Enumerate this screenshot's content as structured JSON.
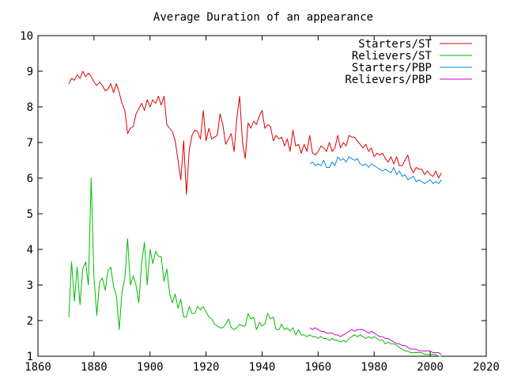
{
  "chart_data": {
    "type": "line",
    "title": "Average Duration of an appearance",
    "xlabel": "",
    "ylabel": "",
    "xlim": [
      1860,
      2020
    ],
    "ylim": [
      1,
      10
    ],
    "x_ticks": [
      1860,
      1880,
      1900,
      1920,
      1940,
      1960,
      1980,
      2000,
      2020
    ],
    "y_ticks": [
      1,
      2,
      3,
      4,
      5,
      6,
      7,
      8,
      9,
      10
    ],
    "grid": false,
    "legend_position": "top-right",
    "series": [
      {
        "name": "Starters/ST",
        "color": "#dd0000",
        "x": [
          1871,
          1872,
          1873,
          1874,
          1875,
          1876,
          1877,
          1878,
          1879,
          1880,
          1881,
          1882,
          1883,
          1884,
          1885,
          1886,
          1887,
          1888,
          1889,
          1890,
          1891,
          1892,
          1893,
          1894,
          1895,
          1896,
          1897,
          1898,
          1899,
          1900,
          1901,
          1902,
          1903,
          1904,
          1905,
          1906,
          1907,
          1908,
          1909,
          1910,
          1911,
          1912,
          1913,
          1914,
          1915,
          1916,
          1917,
          1918,
          1919,
          1920,
          1921,
          1922,
          1923,
          1924,
          1925,
          1926,
          1927,
          1928,
          1929,
          1930,
          1931,
          1932,
          1933,
          1934,
          1935,
          1936,
          1937,
          1938,
          1939,
          1940,
          1941,
          1942,
          1943,
          1944,
          1945,
          1946,
          1947,
          1948,
          1949,
          1950,
          1951,
          1952,
          1953,
          1954,
          1955,
          1956,
          1957,
          1958,
          1959,
          1960,
          1961,
          1962,
          1963,
          1964,
          1965,
          1966,
          1967,
          1968,
          1969,
          1970,
          1971,
          1972,
          1973,
          1974,
          1975,
          1976,
          1977,
          1978,
          1979,
          1980,
          1981,
          1982,
          1983,
          1984,
          1985,
          1986,
          1987,
          1988,
          1989,
          1990,
          1991,
          1992,
          1993,
          1994,
          1995,
          1996,
          1997,
          1998,
          1999,
          2000,
          2001,
          2002,
          2003,
          2004
        ],
        "y": [
          8.65,
          8.8,
          8.75,
          8.9,
          8.8,
          9.0,
          8.85,
          8.95,
          8.85,
          8.7,
          8.6,
          8.7,
          8.6,
          8.45,
          8.5,
          8.65,
          8.4,
          8.65,
          8.4,
          8.1,
          7.9,
          7.25,
          7.4,
          7.45,
          7.8,
          7.95,
          8.1,
          7.9,
          8.2,
          8.0,
          8.2,
          8.1,
          8.3,
          8.05,
          8.3,
          7.5,
          7.4,
          7.3,
          7.05,
          6.5,
          5.95,
          7.05,
          5.55,
          6.8,
          7.2,
          7.35,
          7.3,
          7.1,
          7.9,
          7.05,
          7.4,
          7.1,
          7.15,
          7.2,
          7.8,
          7.5,
          6.95,
          7.1,
          7.25,
          6.75,
          7.7,
          8.3,
          7.0,
          6.55,
          7.55,
          7.4,
          7.6,
          7.5,
          7.75,
          7.9,
          7.4,
          7.5,
          7.45,
          7.05,
          7.2,
          7.1,
          7.15,
          6.9,
          7.1,
          6.75,
          7.35,
          6.9,
          6.95,
          6.7,
          6.95,
          6.75,
          7.2,
          6.7,
          6.65,
          6.75,
          6.9,
          6.85,
          6.75,
          7.0,
          6.75,
          6.85,
          7.2,
          6.85,
          7.0,
          6.9,
          7.2,
          7.15,
          7.15,
          7.05,
          6.95,
          6.85,
          6.95,
          6.75,
          6.85,
          6.6,
          6.7,
          6.65,
          6.7,
          6.55,
          6.45,
          6.6,
          6.4,
          6.6,
          6.35,
          6.35,
          6.5,
          6.65,
          6.3,
          6.15,
          6.3,
          6.25,
          6.25,
          6.1,
          6.2,
          6.1,
          6.05,
          6.2,
          6.0,
          6.15
        ]
      },
      {
        "name": "Relievers/ST",
        "color": "#00bb00",
        "x": [
          1871,
          1872,
          1873,
          1874,
          1875,
          1876,
          1877,
          1878,
          1879,
          1880,
          1881,
          1882,
          1883,
          1884,
          1885,
          1886,
          1887,
          1888,
          1889,
          1890,
          1891,
          1892,
          1893,
          1894,
          1895,
          1896,
          1897,
          1898,
          1899,
          1900,
          1901,
          1902,
          1903,
          1904,
          1905,
          1906,
          1907,
          1908,
          1909,
          1910,
          1911,
          1912,
          1913,
          1914,
          1915,
          1916,
          1917,
          1918,
          1919,
          1920,
          1921,
          1922,
          1923,
          1924,
          1925,
          1926,
          1927,
          1928,
          1929,
          1930,
          1931,
          1932,
          1933,
          1934,
          1935,
          1936,
          1937,
          1938,
          1939,
          1940,
          1941,
          1942,
          1943,
          1944,
          1945,
          1946,
          1947,
          1948,
          1949,
          1950,
          1951,
          1952,
          1953,
          1954,
          1955,
          1956,
          1957,
          1958,
          1959,
          1960,
          1961,
          1962,
          1963,
          1964,
          1965,
          1966,
          1967,
          1968,
          1969,
          1970,
          1971,
          1972,
          1973,
          1974,
          1975,
          1976,
          1977,
          1978,
          1979,
          1980,
          1981,
          1982,
          1983,
          1984,
          1985,
          1986,
          1987,
          1988,
          1989,
          1990,
          1991,
          1992,
          1993,
          1994,
          1995,
          1996,
          1997,
          1998,
          1999,
          2000,
          2001,
          2002,
          2003,
          2004
        ],
        "y": [
          2.1,
          3.65,
          2.55,
          3.5,
          2.45,
          3.45,
          3.65,
          3.0,
          6.0,
          3.2,
          2.15,
          3.1,
          3.2,
          2.85,
          3.4,
          3.5,
          2.95,
          2.7,
          1.75,
          2.8,
          3.2,
          4.3,
          3.0,
          3.25,
          3.0,
          2.5,
          3.6,
          4.2,
          3.0,
          4.0,
          3.6,
          3.95,
          3.8,
          3.8,
          3.1,
          3.45,
          2.75,
          2.5,
          2.75,
          2.35,
          2.6,
          2.1,
          2.1,
          2.4,
          2.2,
          2.2,
          2.4,
          2.3,
          2.4,
          2.25,
          2.1,
          2.05,
          1.9,
          1.85,
          1.8,
          1.8,
          1.9,
          2.05,
          1.8,
          1.75,
          1.8,
          1.9,
          1.85,
          1.85,
          2.2,
          2.05,
          2.1,
          1.75,
          1.95,
          1.85,
          1.9,
          2.2,
          2.05,
          2.1,
          1.75,
          1.75,
          1.9,
          1.75,
          1.8,
          1.7,
          1.8,
          1.6,
          1.75,
          1.6,
          1.6,
          1.55,
          1.6,
          1.55,
          1.55,
          1.5,
          1.55,
          1.5,
          1.5,
          1.45,
          1.5,
          1.45,
          1.45,
          1.4,
          1.45,
          1.4,
          1.5,
          1.55,
          1.6,
          1.55,
          1.6,
          1.55,
          1.5,
          1.55,
          1.5,
          1.55,
          1.5,
          1.45,
          1.45,
          1.35,
          1.4,
          1.35,
          1.35,
          1.3,
          1.25,
          1.2,
          1.15,
          1.15,
          1.1,
          1.1,
          1.1,
          1.1,
          1.1,
          1.05,
          1.05,
          1.05,
          1.05,
          1.05,
          1.0,
          1.0
        ]
      },
      {
        "name": "Starters/PBP",
        "color": "#0088dd",
        "x": [
          1957,
          1958,
          1959,
          1960,
          1961,
          1962,
          1963,
          1964,
          1965,
          1966,
          1967,
          1968,
          1969,
          1970,
          1971,
          1972,
          1973,
          1974,
          1975,
          1976,
          1977,
          1978,
          1979,
          1980,
          1981,
          1982,
          1983,
          1984,
          1985,
          1986,
          1987,
          1988,
          1989,
          1990,
          1991,
          1992,
          1993,
          1994,
          1995,
          1996,
          1997,
          1998,
          1999,
          2000,
          2001,
          2002,
          2003,
          2004
        ],
        "y": [
          6.4,
          6.45,
          6.35,
          6.4,
          6.35,
          6.5,
          6.3,
          6.3,
          6.45,
          6.35,
          6.6,
          6.5,
          6.55,
          6.45,
          6.6,
          6.55,
          6.5,
          6.55,
          6.4,
          6.35,
          6.4,
          6.3,
          6.4,
          6.35,
          6.3,
          6.25,
          6.2,
          6.25,
          6.2,
          6.15,
          6.3,
          6.1,
          6.2,
          6.05,
          6.1,
          5.95,
          6.0,
          6.05,
          5.9,
          5.95,
          5.9,
          5.85,
          5.9,
          5.95,
          5.85,
          5.9,
          5.85,
          5.95
        ]
      },
      {
        "name": "Relievers/PBP",
        "color": "#cc00cc",
        "x": [
          1957,
          1958,
          1959,
          1960,
          1961,
          1962,
          1963,
          1964,
          1965,
          1966,
          1967,
          1968,
          1969,
          1970,
          1971,
          1972,
          1973,
          1974,
          1975,
          1976,
          1977,
          1978,
          1979,
          1980,
          1981,
          1982,
          1983,
          1984,
          1985,
          1986,
          1987,
          1988,
          1989,
          1990,
          1991,
          1992,
          1993,
          1994,
          1995,
          1996,
          1997,
          1998,
          1999,
          2000,
          2001,
          2002,
          2003,
          2004
        ],
        "y": [
          1.8,
          1.75,
          1.8,
          1.75,
          1.7,
          1.7,
          1.65,
          1.65,
          1.65,
          1.6,
          1.6,
          1.55,
          1.6,
          1.65,
          1.7,
          1.75,
          1.7,
          1.75,
          1.75,
          1.75,
          1.7,
          1.65,
          1.7,
          1.65,
          1.6,
          1.55,
          1.55,
          1.5,
          1.5,
          1.45,
          1.4,
          1.35,
          1.35,
          1.3,
          1.3,
          1.25,
          1.2,
          1.2,
          1.2,
          1.15,
          1.15,
          1.15,
          1.15,
          1.15,
          1.1,
          1.1,
          1.1,
          1.05
        ]
      }
    ]
  }
}
